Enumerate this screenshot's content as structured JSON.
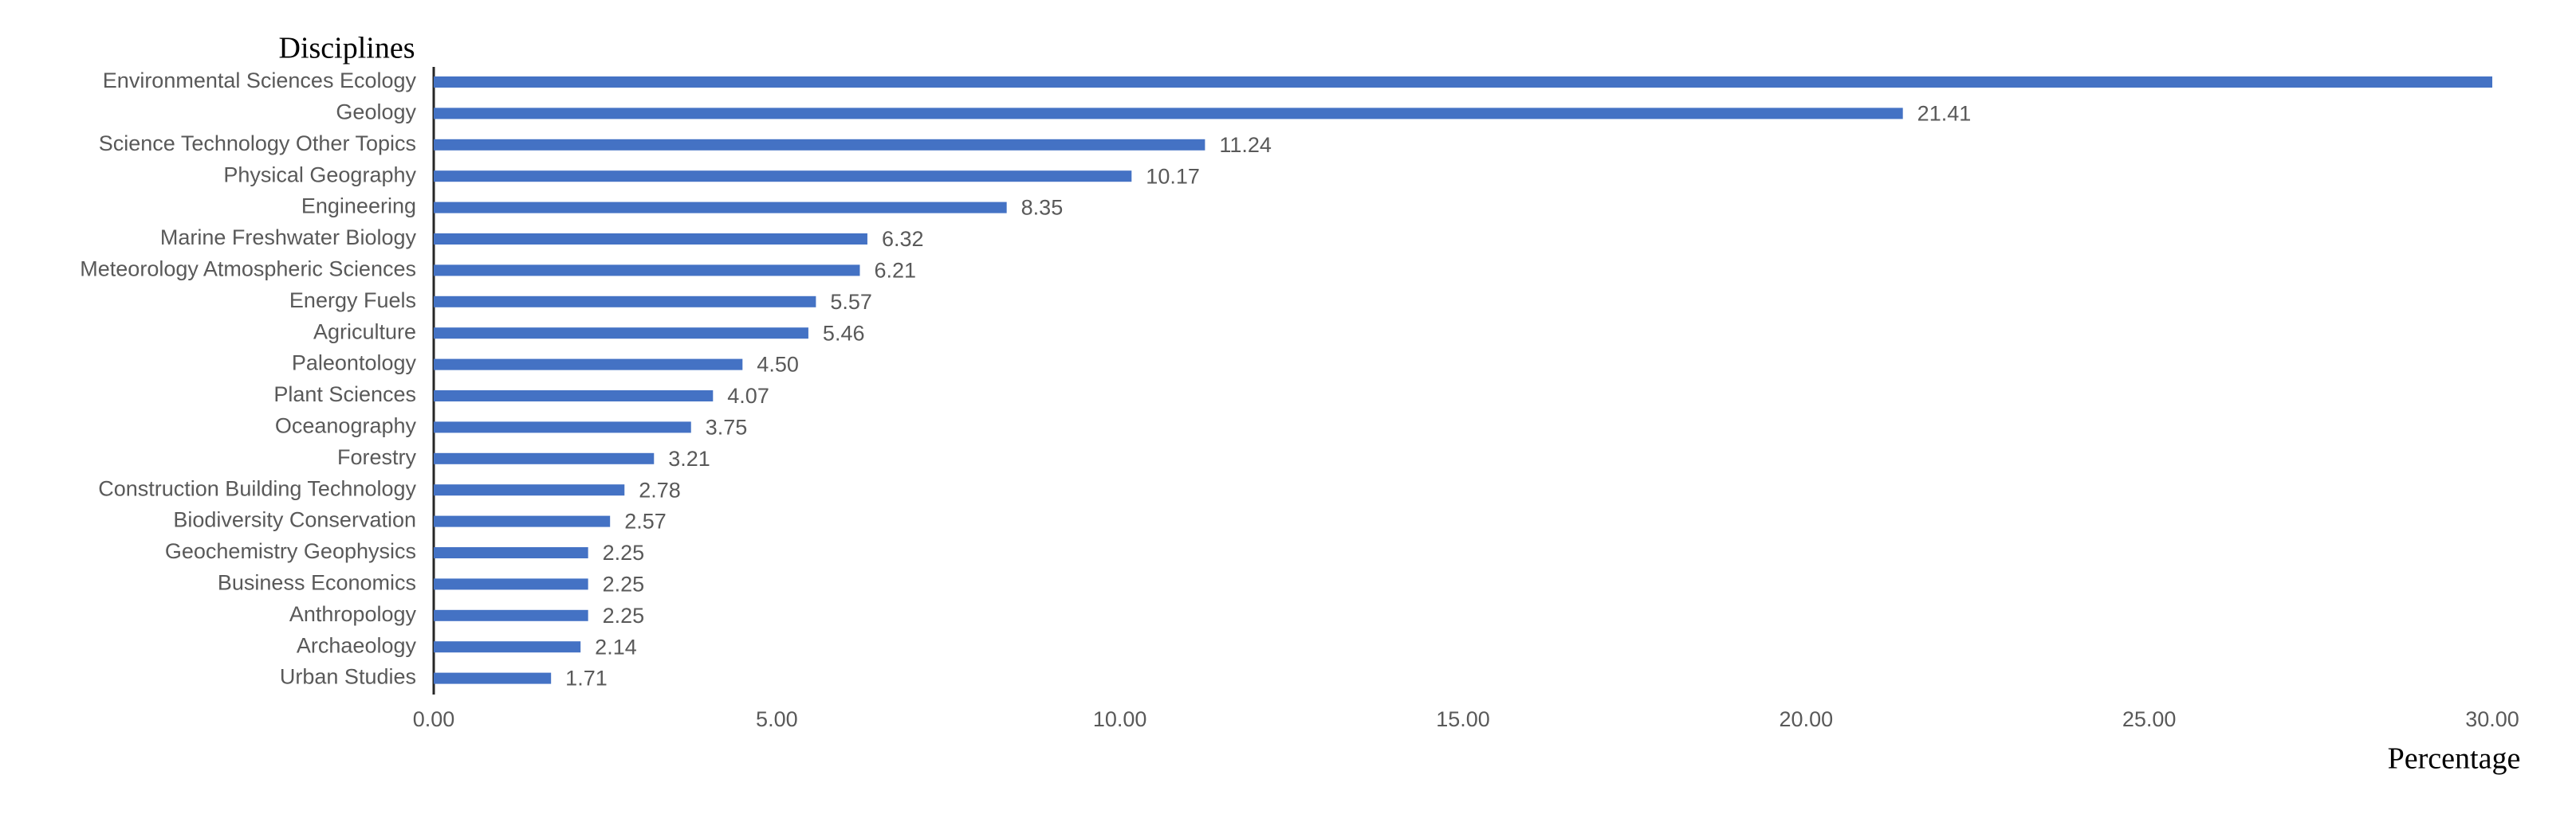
{
  "chart_data": {
    "type": "hbar",
    "y_label": "Disciplines",
    "x_label": "Percentage",
    "categories": [
      "Environmental Sciences Ecology",
      "Geology",
      "Science Technology Other Topics",
      "Physical Geography",
      "Engineering",
      "Marine Freshwater Biology",
      "Meteorology Atmospheric Sciences",
      "Energy Fuels",
      "Agriculture",
      "Paleontology",
      "Plant Sciences",
      "Oceanography",
      "Forestry",
      "Construction Building Technology",
      "Biodiversity Conservation",
      "Geochemistry Geophysics",
      "Business Economics",
      "Anthropology",
      "Archaeology",
      "Urban Studies"
    ],
    "values": [
      30,
      21.41,
      11.24,
      10.17,
      8.35,
      6.32,
      6.21,
      5.57,
      5.46,
      4.5,
      4.07,
      3.75,
      3.21,
      2.78,
      2.57,
      2.25,
      2.25,
      2.25,
      2.14,
      1.71
    ],
    "value_labels": [
      null,
      "21.41",
      "11.24",
      "10.17",
      "8.35",
      "6.32",
      "6.21",
      "5.57",
      "5.46",
      "4.50",
      "4.07",
      "3.75",
      "3.21",
      "2.78",
      "2.57",
      "2.25",
      "2.25",
      "2.25",
      "2.14",
      "1.71"
    ],
    "color": "#4472c4",
    "xlim": [
      0,
      30
    ],
    "xticks": [
      {
        "value": 0,
        "label": "0.00"
      },
      {
        "value": 5,
        "label": "5.00"
      },
      {
        "value": 10,
        "label": "10.00"
      },
      {
        "value": 15,
        "label": "15.00"
      },
      {
        "value": 20,
        "label": "20.00"
      },
      {
        "value": 25,
        "label": "25.00"
      },
      {
        "value": 30,
        "label": "30.00"
      }
    ],
    "grid": false
  }
}
